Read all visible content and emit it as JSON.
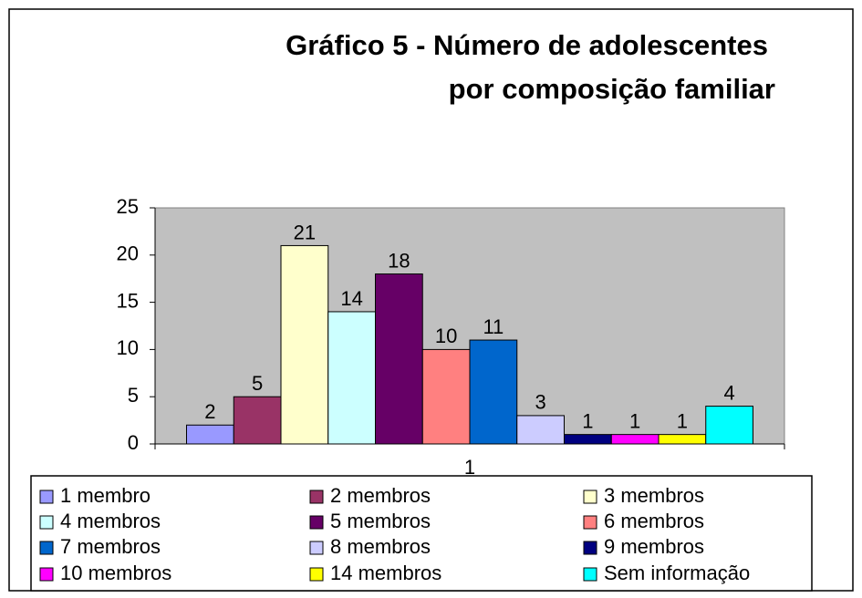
{
  "chart_data": {
    "type": "bar",
    "title": [
      "Gráfico 5 - Número de adolescentes",
      "por composição familiar"
    ],
    "categories": [
      "1"
    ],
    "series": [
      {
        "name": "1 membro",
        "color": "#9999ff",
        "values": [
          2
        ]
      },
      {
        "name": "2 membros",
        "color": "#993366",
        "values": [
          5
        ]
      },
      {
        "name": "3 membros",
        "color": "#ffffcc",
        "values": [
          21
        ]
      },
      {
        "name": "4 membros",
        "color": "#ccffff",
        "values": [
          14
        ]
      },
      {
        "name": "5 membros",
        "color": "#660066",
        "values": [
          18
        ]
      },
      {
        "name": "6 membros",
        "color": "#ff8080",
        "values": [
          10
        ]
      },
      {
        "name": "7 membros",
        "color": "#0066cc",
        "values": [
          11
        ]
      },
      {
        "name": "8 membros",
        "color": "#ccccff",
        "values": [
          3
        ]
      },
      {
        "name": "9 membros",
        "color": "#000080",
        "values": [
          1
        ]
      },
      {
        "name": "10 membros",
        "color": "#ff00ff",
        "values": [
          1
        ]
      },
      {
        "name": "14 membros",
        "color": "#ffff00",
        "values": [
          1
        ]
      },
      {
        "name": "Sem informação",
        "color": "#00ffff",
        "values": [
          4
        ]
      }
    ],
    "ylim": [
      0,
      25
    ],
    "yticks": [
      0,
      5,
      10,
      15,
      20,
      25
    ],
    "plot_color": "#c0c0c0",
    "legend": "bottom"
  }
}
